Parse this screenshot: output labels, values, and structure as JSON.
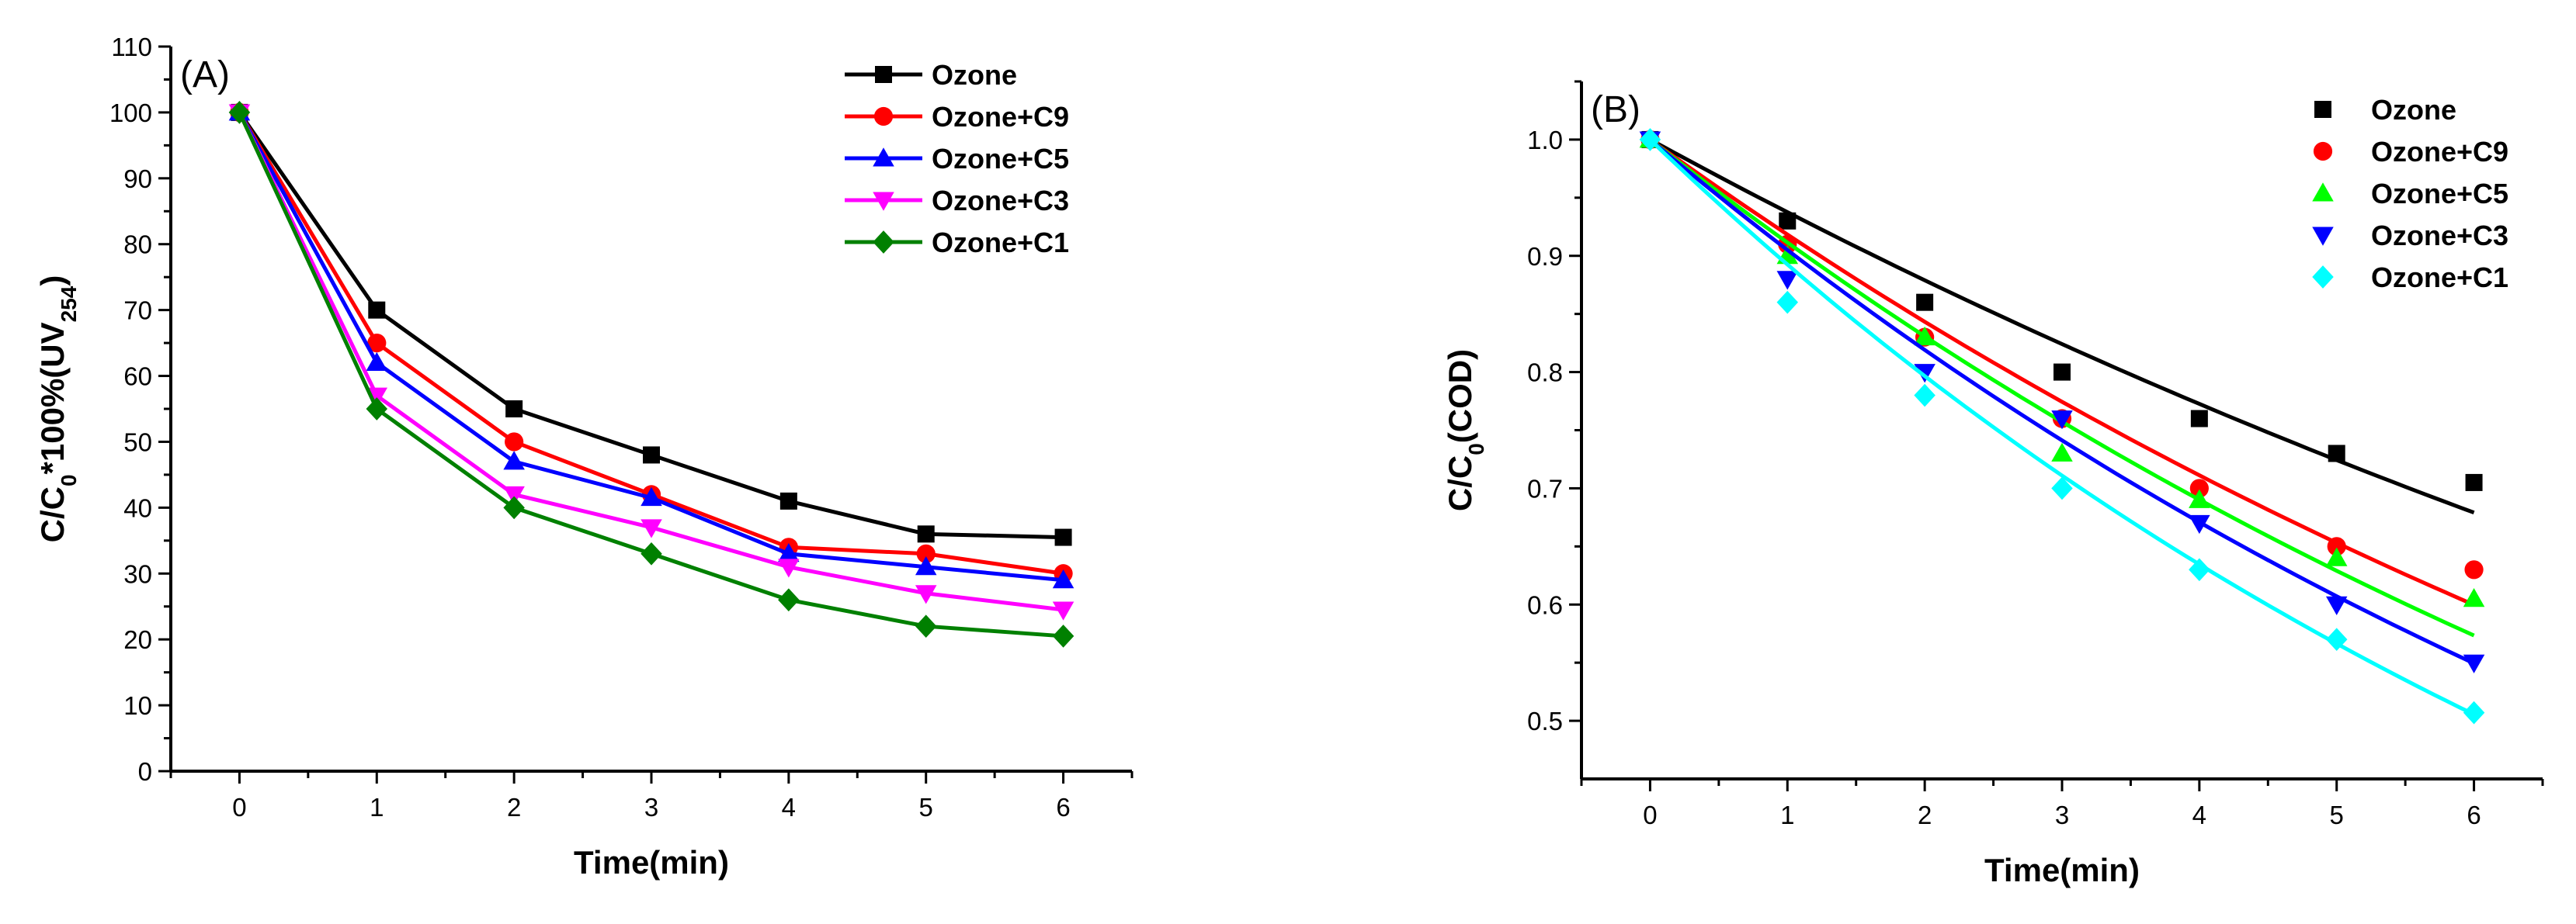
{
  "chart_data": [
    {
      "panel": "(A)",
      "type": "line",
      "style": "line-with-markers",
      "xlabel": "Time(min)",
      "ylabel_parts": [
        "C/C",
        "0",
        "*100%(UV",
        "254",
        ")"
      ],
      "xlim": [
        -0.5,
        6.5
      ],
      "ylim": [
        0,
        110
      ],
      "xticks": [
        0,
        1,
        2,
        3,
        4,
        5,
        6
      ],
      "yticks": [
        0,
        10,
        20,
        30,
        40,
        50,
        60,
        70,
        80,
        90,
        100,
        110
      ],
      "legend_position": "top-right",
      "x": [
        0,
        1,
        2,
        3,
        4,
        5,
        6
      ],
      "series": [
        {
          "name": "Ozone",
          "color": "#000000",
          "marker": "square",
          "values": [
            100,
            70,
            55,
            48,
            41,
            36,
            35.5
          ]
        },
        {
          "name": "Ozone+C9",
          "color": "#ff0000",
          "marker": "circle",
          "values": [
            100,
            65,
            50,
            42,
            34,
            33,
            30
          ]
        },
        {
          "name": "Ozone+C5",
          "color": "#0000ff",
          "marker": "triangle-up",
          "values": [
            100,
            62,
            47,
            41.5,
            33,
            31,
            29
          ]
        },
        {
          "name": "Ozone+C3",
          "color": "#ff00ff",
          "marker": "triangle-down",
          "values": [
            100,
            57,
            42,
            37,
            31,
            27,
            24.5
          ]
        },
        {
          "name": "Ozone+C1",
          "color": "#008000",
          "marker": "diamond",
          "values": [
            100,
            55,
            40,
            33,
            26,
            22,
            20.5
          ]
        }
      ]
    },
    {
      "panel": "(B)",
      "type": "scatter",
      "style": "markers-with-fit-curves",
      "xlabel": "Time(min)",
      "ylabel_parts": [
        "C/C",
        "0",
        "(COD)"
      ],
      "xlim": [
        -0.5,
        6.5
      ],
      "ylim": [
        0.45,
        1.05
      ],
      "xticks": [
        0,
        1,
        2,
        3,
        4,
        5,
        6
      ],
      "yticks": [
        0.5,
        0.6,
        0.7,
        0.8,
        0.9,
        1.0
      ],
      "ytick_labels": [
        "0.5",
        "0.6",
        "0.7",
        "0.8",
        "0.9",
        "1.0"
      ],
      "legend_position": "top-right",
      "x": [
        0,
        1,
        2,
        3,
        4,
        5,
        6
      ],
      "series": [
        {
          "name": "Ozone",
          "color": "#000000",
          "marker": "square",
          "values": [
            1.0,
            0.93,
            0.86,
            0.8,
            0.76,
            0.73,
            0.705
          ],
          "fit_k": 0.0645
        },
        {
          "name": "Ozone+C9",
          "color": "#ff0000",
          "marker": "circle",
          "values": [
            1.0,
            0.91,
            0.83,
            0.76,
            0.7,
            0.65,
            0.63
          ],
          "fit_k": 0.0852
        },
        {
          "name": "Ozone+C5",
          "color": "#00ff00",
          "marker": "triangle-up",
          "values": [
            1.0,
            0.9,
            0.83,
            0.73,
            0.69,
            0.64,
            0.605
          ],
          "fit_k": 0.0927
        },
        {
          "name": "Ozone+C3",
          "color": "#0000ff",
          "marker": "triangle-down",
          "values": [
            1.0,
            0.88,
            0.8,
            0.76,
            0.67,
            0.6,
            0.55
          ],
          "fit_k": 0.0998
        },
        {
          "name": "Ozone+C1",
          "color": "#00ffff",
          "marker": "diamond",
          "values": [
            1.0,
            0.86,
            0.78,
            0.7,
            0.63,
            0.57,
            0.507
          ],
          "fit_k": 0.1137
        }
      ]
    }
  ]
}
